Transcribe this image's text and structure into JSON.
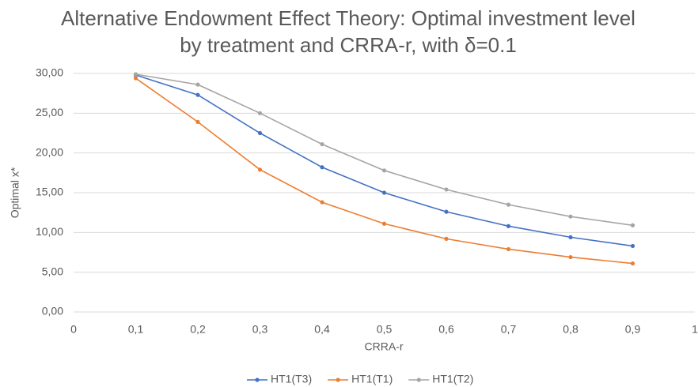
{
  "chart_data": {
    "type": "line",
    "title": "Alternative Endowment Effect Theory: Optimal investment level by treatment and CRRA-r, with δ=0.1",
    "x_label": "CRRA-r",
    "y_label": "Optimal x*",
    "x": [
      0.1,
      0.2,
      0.3,
      0.4,
      0.5,
      0.6,
      0.7,
      0.8,
      0.9
    ],
    "series": [
      {
        "name": "HT1(T3)",
        "color": "#4472c4",
        "values": [
          29.8,
          27.3,
          22.5,
          18.2,
          15.0,
          12.6,
          10.8,
          9.4,
          8.3
        ]
      },
      {
        "name": "HT1(T1)",
        "color": "#ed7d31",
        "values": [
          29.4,
          23.9,
          17.9,
          13.8,
          11.1,
          9.2,
          7.9,
          6.9,
          6.1
        ]
      },
      {
        "name": "HT1(T2)",
        "color": "#a5a5a5",
        "values": [
          29.9,
          28.6,
          25.0,
          21.1,
          17.8,
          15.4,
          13.5,
          12.0,
          10.9
        ]
      }
    ],
    "xlim": [
      0,
      1
    ],
    "xticks": [
      0,
      {
        "value": 0.1,
        "label": "0,1"
      },
      {
        "value": 0.2,
        "label": "0,2"
      },
      {
        "value": 0.3,
        "label": "0,3"
      },
      {
        "value": 0.4,
        "label": "0,4"
      },
      {
        "value": 0.5,
        "label": "0,5"
      },
      {
        "value": 0.6,
        "label": "0,6"
      },
      {
        "value": 0.7,
        "label": "0,7"
      },
      {
        "value": 0.8,
        "label": "0,8"
      },
      {
        "value": 0.9,
        "label": "0,9"
      },
      1
    ],
    "ylim": [
      0,
      30
    ],
    "yticks": [
      {
        "value": 0,
        "label": "0,00"
      },
      {
        "value": 5,
        "label": "5,00"
      },
      {
        "value": 10,
        "label": "10,00"
      },
      {
        "value": 15,
        "label": "15,00"
      },
      {
        "value": 20,
        "label": "20,00"
      },
      {
        "value": 25,
        "label": "25,00"
      },
      {
        "value": 30,
        "label": "30,00"
      }
    ],
    "grid": true,
    "legend": "bottom"
  }
}
